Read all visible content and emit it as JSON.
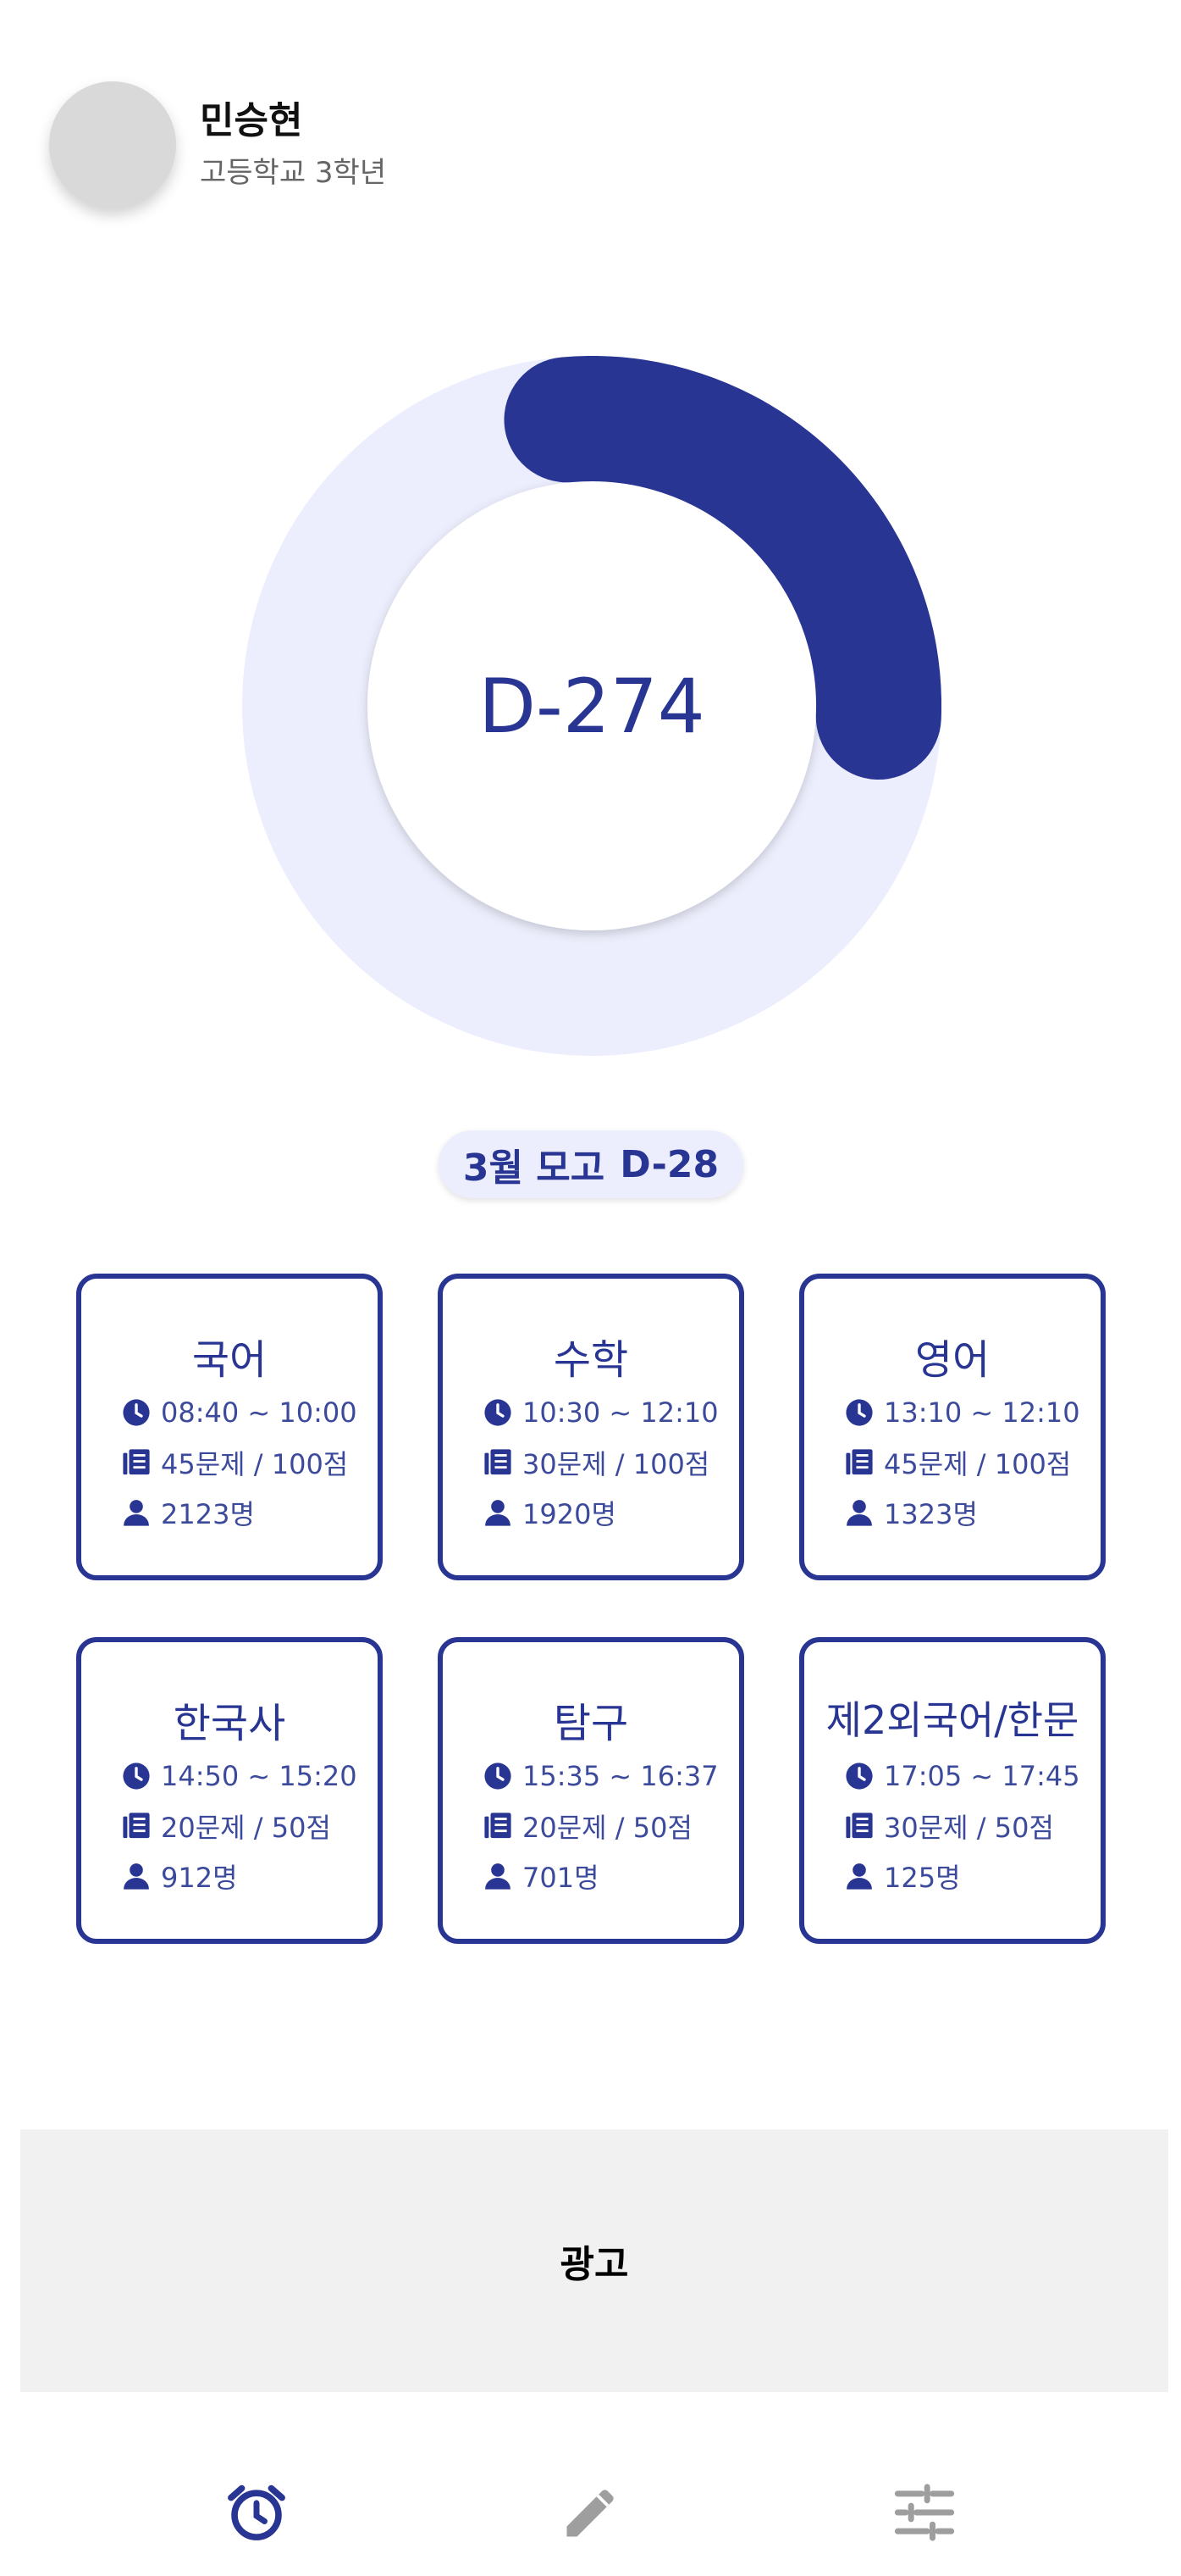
{
  "profile": {
    "name": "민승현",
    "grade": "고등학교 3학년"
  },
  "countdown": {
    "label": "D-274",
    "progress": 0.27
  },
  "next_exam": {
    "name": "3월 모고",
    "dday": "D-28"
  },
  "subjects": [
    {
      "name": "국어",
      "time": "08:40 ~ 10:00",
      "questions": "45문제 / 100점",
      "people": "2123명"
    },
    {
      "name": "수학",
      "time": "10:30 ~ 12:10",
      "questions": "30문제 / 100점",
      "people": "1920명"
    },
    {
      "name": "영어",
      "time": "13:10 ~ 12:10",
      "questions": "45문제 / 100점",
      "people": "1323명"
    },
    {
      "name": "한국사",
      "time": "14:50 ~ 15:20",
      "questions": "20문제 / 50점",
      "people": "912명"
    },
    {
      "name": "탐구",
      "time": "15:35 ~ 16:37",
      "questions": "20문제 / 50점",
      "people": "701명"
    },
    {
      "name": "제2외국어/한문",
      "time": "17:05 ~ 17:45",
      "questions": "30문제 / 50점",
      "people": "125명"
    }
  ],
  "ad": {
    "label": "광고"
  },
  "nav": {
    "items": [
      {
        "icon": "alarm-clock-icon",
        "active": true
      },
      {
        "icon": "pencil-icon",
        "active": false
      },
      {
        "icon": "sliders-icon",
        "active": false
      }
    ]
  },
  "colors": {
    "primary": "#283593",
    "track": "#eceefd",
    "inactive_icon": "#9e9e9e"
  }
}
